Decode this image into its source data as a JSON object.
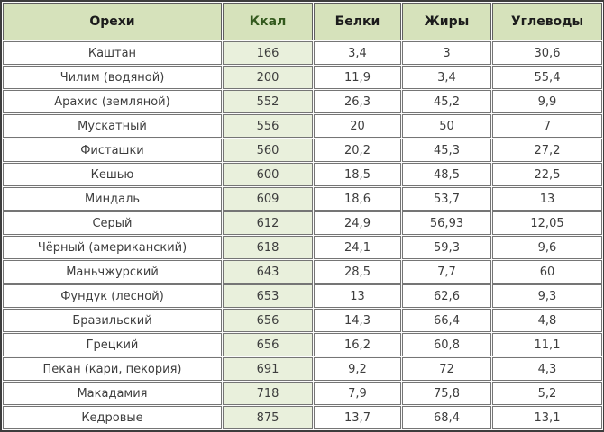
{
  "colors": {
    "header_bg": "#d6e2bb",
    "header_text": "#1c1c1c",
    "kcal_header_text": "#33591d",
    "kcal_column_bg": "#e9f0dc",
    "cell_bg": "#ffffff",
    "cell_text": "#3d3d3d",
    "inner_border": "#757575",
    "outer_border": "#3d3d3d",
    "spacing_gap": "#fbfbfb"
  },
  "chart_data": {
    "type": "table",
    "columns": [
      "Орехи",
      "Ккал",
      "Белки",
      "Жиры",
      "Углеводы"
    ],
    "rows": [
      [
        "Каштан",
        "166",
        "3,4",
        "3",
        "30,6"
      ],
      [
        "Чилим (водяной)",
        "200",
        "11,9",
        "3,4",
        "55,4"
      ],
      [
        "Арахис (земляной)",
        "552",
        "26,3",
        "45,2",
        "9,9"
      ],
      [
        "Мускатный",
        "556",
        "20",
        "50",
        "7"
      ],
      [
        "Фисташки",
        "560",
        "20,2",
        "45,3",
        "27,2"
      ],
      [
        "Кешью",
        "600",
        "18,5",
        "48,5",
        "22,5"
      ],
      [
        "Миндаль",
        "609",
        "18,6",
        "53,7",
        "13"
      ],
      [
        "Серый",
        "612",
        "24,9",
        "56,93",
        "12,05"
      ],
      [
        "Чёрный (американский)",
        "618",
        "24,1",
        "59,3",
        "9,6"
      ],
      [
        "Маньчжурский",
        "643",
        "28,5",
        "7,7",
        "60"
      ],
      [
        "Фундук (лесной)",
        "653",
        "13",
        "62,6",
        "9,3"
      ],
      [
        "Бразильский",
        "656",
        "14,3",
        "66,4",
        "4,8"
      ],
      [
        "Грецкий",
        "656",
        "16,2",
        "60,8",
        "11,1"
      ],
      [
        "Пекан (кари, пекория)",
        "691",
        "9,2",
        "72",
        "4,3"
      ],
      [
        "Макадамия",
        "718",
        "7,9",
        "75,8",
        "5,2"
      ],
      [
        "Кедровые",
        "875",
        "13,7",
        "68,4",
        "13,1"
      ]
    ]
  }
}
